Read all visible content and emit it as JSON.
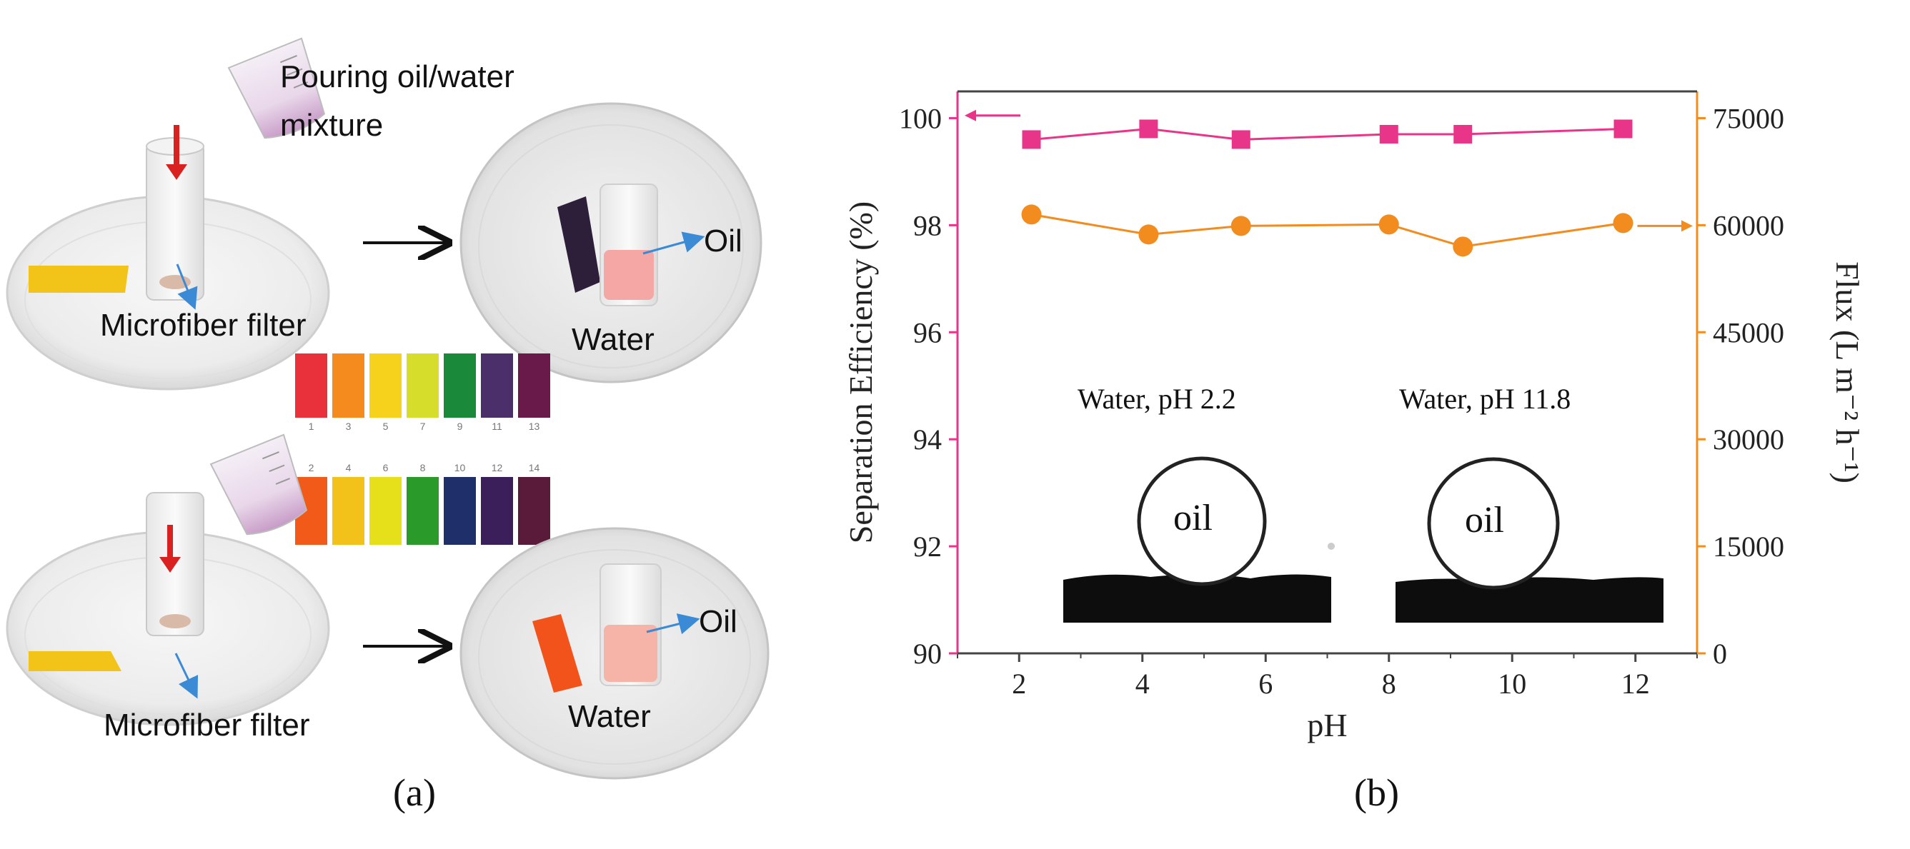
{
  "panel_a": {
    "label": "(a)",
    "top": {
      "pour_label_line1": "Pouring oil/water",
      "pour_label_line2": "mixture",
      "filter_label": "Microfiber filter",
      "oil_label": "Oil",
      "water_label": "Water"
    },
    "bottom": {
      "filter_label": "Microfiber filter",
      "oil_label": "Oil",
      "water_label": "Water"
    },
    "ph_strip_odd": {
      "numbers": [
        "1",
        "3",
        "5",
        "7",
        "9",
        "11",
        "13"
      ],
      "colors": [
        "#e8313a",
        "#f58a1f",
        "#f6d21c",
        "#d6dd2a",
        "#1a8a3a",
        "#4a2f6a",
        "#6a1a4a"
      ]
    },
    "ph_strip_even": {
      "numbers": [
        "2",
        "4",
        "6",
        "8",
        "10",
        "12",
        "14"
      ],
      "colors": [
        "#f25a1a",
        "#f3c21a",
        "#e6e01a",
        "#2a9a2a",
        "#1e2f6a",
        "#3a1f5a",
        "#5a1a3a"
      ]
    },
    "colors": {
      "red_arrow": "#d9221f",
      "blue_arrow": "#3a8ad6",
      "yellow_strip": "#f2c318",
      "orange_strip": "#f2531a",
      "dark_strip": "#2d1f3a",
      "oil_pink": "#f4a7a4"
    }
  },
  "panel_b": {
    "label": "(b)",
    "chart_data": {
      "type": "line",
      "xlabel": "pH",
      "ylabel_left": "Separation Efficiency (%)",
      "ylabel_right": "Flux (L m⁻² h⁻¹)",
      "xlim": [
        1,
        13
      ],
      "ylim_left": [
        90,
        100.5
      ],
      "ylim_right": [
        0,
        78750
      ],
      "x_ticks": [
        2,
        4,
        6,
        8,
        10,
        12
      ],
      "y_ticks_left": [
        90,
        92,
        94,
        96,
        98,
        100
      ],
      "y_ticks_right": [
        0,
        15000,
        30000,
        45000,
        60000,
        75000
      ],
      "series": [
        {
          "name": "Separation Efficiency",
          "axis": "left",
          "color": "#e8358a",
          "marker": "square",
          "x": [
            2.2,
            4.1,
            5.6,
            8.0,
            9.2,
            11.8
          ],
          "values": [
            99.6,
            99.8,
            99.6,
            99.7,
            99.7,
            99.8
          ]
        },
        {
          "name": "Flux",
          "axis": "right",
          "color": "#f28c1e",
          "marker": "circle",
          "x": [
            2.2,
            4.1,
            5.6,
            8.0,
            9.2,
            11.8
          ],
          "values": [
            61500,
            58700,
            59900,
            60100,
            57000,
            60300
          ]
        }
      ],
      "annotations": [
        {
          "text": "Water, pH 2.2",
          "drop_label": "oil"
        },
        {
          "text": "Water, pH 11.8",
          "drop_label": "oil"
        }
      ],
      "axis_colors": {
        "left": "#e8358a",
        "right": "#f28c1e",
        "frame": "#444444"
      }
    }
  }
}
